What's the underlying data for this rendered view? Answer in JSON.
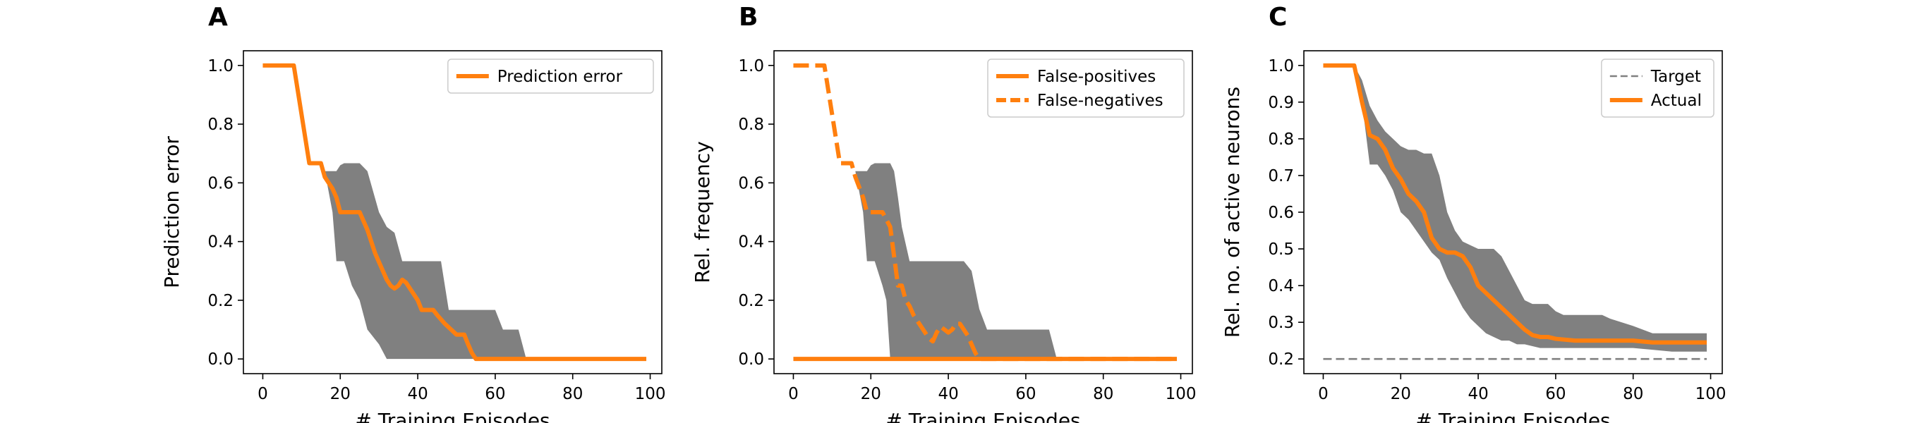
{
  "chart_data": [
    {
      "panel": "A",
      "type": "line",
      "xlabel": "# Training Episodes",
      "ylabel": "Prediction error",
      "xlim": [
        -5,
        103
      ],
      "ylim": [
        -0.05,
        1.05
      ],
      "xticks": [
        0,
        20,
        40,
        60,
        80,
        100
      ],
      "yticks": [
        0.0,
        0.2,
        0.4,
        0.6,
        0.8,
        1.0
      ],
      "yticks_decimals": 1,
      "grid": false,
      "legend": "top-right",
      "band": {
        "x": [
          0,
          8,
          11,
          14,
          15,
          16,
          18,
          19,
          20,
          21,
          23,
          25,
          27,
          30,
          32,
          34,
          36,
          38,
          40,
          42,
          44,
          46,
          48,
          50,
          52,
          54,
          56,
          58,
          60,
          62,
          64,
          66,
          68,
          70,
          72,
          80,
          90,
          99
        ],
        "upper": [
          1,
          1,
          0.667,
          0.667,
          0.667,
          0.64,
          0.64,
          0.64,
          0.66,
          0.667,
          0.667,
          0.667,
          0.64,
          0.5,
          0.45,
          0.43,
          0.333,
          0.333,
          0.333,
          0.333,
          0.333,
          0.333,
          0.167,
          0.167,
          0.167,
          0.167,
          0.167,
          0.167,
          0.167,
          0.1,
          0.1,
          0.1,
          0.0,
          0.0,
          0.0,
          0.0,
          0.0,
          0.0
        ],
        "lower": [
          1,
          1,
          0.667,
          0.667,
          0.667,
          0.64,
          0.5,
          0.333,
          0.333,
          0.333,
          0.25,
          0.2,
          0.1,
          0.05,
          0.0,
          0.0,
          0.0,
          0.0,
          0.0,
          0.0,
          0.0,
          0.0,
          0.0,
          0.0,
          0.0,
          0.0,
          0.0,
          0.0,
          0.0,
          0.0,
          0.0,
          0.0,
          0.0,
          0.0,
          0.0,
          0.0,
          0.0,
          0.0
        ],
        "color": "#808080"
      },
      "reference": null,
      "series": [
        {
          "name": "Prediction error",
          "style": "solid",
          "color": "#ff7f0e",
          "x": [
            0,
            8,
            12,
            15,
            16,
            18,
            19,
            20,
            24,
            25,
            26,
            27,
            28,
            29,
            30,
            31,
            32,
            33,
            34,
            35,
            36,
            37,
            38,
            39,
            40,
            41,
            42,
            44,
            45,
            47,
            50,
            52,
            53,
            54,
            55,
            60,
            70,
            80,
            90,
            99
          ],
          "y": [
            1,
            1,
            0.667,
            0.667,
            0.62,
            0.58,
            0.55,
            0.5,
            0.5,
            0.5,
            0.47,
            0.44,
            0.4,
            0.36,
            0.33,
            0.3,
            0.27,
            0.25,
            0.24,
            0.25,
            0.27,
            0.26,
            0.24,
            0.22,
            0.2,
            0.167,
            0.167,
            0.167,
            0.15,
            0.12,
            0.083,
            0.083,
            0.05,
            0.02,
            0.0,
            0.0,
            0.0,
            0.0,
            0.0,
            0.0
          ]
        }
      ]
    },
    {
      "panel": "B",
      "type": "line",
      "xlabel": "# Training Episodes",
      "ylabel": "Rel. frequency",
      "xlim": [
        -5,
        103
      ],
      "ylim": [
        -0.05,
        1.05
      ],
      "xticks": [
        0,
        20,
        40,
        60,
        80,
        100
      ],
      "yticks": [
        0.0,
        0.2,
        0.4,
        0.6,
        0.8,
        1.0
      ],
      "yticks_decimals": 1,
      "grid": false,
      "legend": "top-right",
      "band": {
        "x": [
          0,
          8,
          11,
          14,
          15,
          16,
          18,
          19,
          20,
          21,
          23,
          24,
          25,
          26,
          27,
          28,
          30,
          32,
          34,
          36,
          38,
          40,
          42,
          44,
          46,
          48,
          50,
          52,
          54,
          56,
          58,
          60,
          62,
          64,
          66,
          68,
          70,
          80,
          90,
          99
        ],
        "upper": [
          1,
          1,
          0.667,
          0.667,
          0.667,
          0.64,
          0.64,
          0.64,
          0.66,
          0.667,
          0.667,
          0.667,
          0.667,
          0.64,
          0.55,
          0.45,
          0.333,
          0.333,
          0.333,
          0.333,
          0.333,
          0.333,
          0.333,
          0.333,
          0.3,
          0.17,
          0.1,
          0.1,
          0.1,
          0.1,
          0.1,
          0.1,
          0.1,
          0.1,
          0.1,
          0.0,
          0.0,
          0.0,
          0.0,
          0.0
        ],
        "lower": [
          1,
          1,
          0.667,
          0.667,
          0.667,
          0.64,
          0.5,
          0.333,
          0.333,
          0.333,
          0.25,
          0.2,
          0.0,
          0.0,
          0.0,
          0.0,
          0.0,
          0.0,
          0.0,
          0.0,
          0.0,
          0.0,
          0.0,
          0.0,
          0.0,
          0.0,
          0.0,
          0.0,
          0.0,
          0.0,
          0.0,
          0.0,
          0.0,
          0.0,
          0.0,
          0.0,
          0.0,
          0.0,
          0.0,
          0.0
        ],
        "color": "#808080"
      },
      "reference": null,
      "series": [
        {
          "name": "False-positives",
          "style": "solid",
          "color": "#ff7f0e",
          "x": [
            0,
            20,
            40,
            60,
            80,
            99
          ],
          "y": [
            0,
            0,
            0,
            0,
            0,
            0
          ]
        },
        {
          "name": "False-negatives",
          "style": "dashed",
          "color": "#ff7f0e",
          "x": [
            0,
            8,
            12,
            15,
            16,
            18,
            19,
            20,
            23,
            25,
            26,
            27,
            28,
            29,
            30,
            31,
            32,
            33,
            34,
            35,
            36,
            37,
            38,
            39,
            40,
            41,
            42,
            43,
            44,
            45,
            46,
            47,
            48,
            55,
            60,
            70,
            80,
            90,
            99
          ],
          "y": [
            1,
            1,
            0.667,
            0.667,
            0.62,
            0.55,
            0.5,
            0.5,
            0.5,
            0.45,
            0.35,
            0.25,
            0.25,
            0.2,
            0.18,
            0.15,
            0.13,
            0.11,
            0.09,
            0.07,
            0.06,
            0.09,
            0.11,
            0.1,
            0.09,
            0.1,
            0.12,
            0.12,
            0.1,
            0.08,
            0.05,
            0.02,
            0.0,
            0.0,
            0.0,
            0.0,
            0.0,
            0.0,
            0.0
          ]
        }
      ]
    },
    {
      "panel": "C",
      "type": "line",
      "xlabel": "# Training Episodes",
      "ylabel": "Rel. no. of active neurons",
      "xlim": [
        -5,
        103
      ],
      "ylim": [
        0.16,
        1.04
      ],
      "xticks": [
        0,
        20,
        40,
        60,
        80,
        100
      ],
      "yticks": [
        0.2,
        0.3,
        0.4,
        0.5,
        0.6,
        0.7,
        0.8,
        0.9,
        1.0
      ],
      "yticks_decimals": 1,
      "grid": false,
      "legend": "top-right",
      "band": {
        "x": [
          0,
          8,
          10,
          12,
          14,
          16,
          18,
          20,
          22,
          24,
          26,
          28,
          30,
          32,
          34,
          36,
          38,
          40,
          42,
          44,
          46,
          48,
          50,
          52,
          54,
          56,
          58,
          60,
          62,
          64,
          66,
          68,
          70,
          72,
          74,
          80,
          85,
          90,
          99
        ],
        "upper": [
          1,
          1,
          0.96,
          0.89,
          0.85,
          0.82,
          0.8,
          0.78,
          0.77,
          0.77,
          0.76,
          0.76,
          0.7,
          0.6,
          0.55,
          0.52,
          0.51,
          0.5,
          0.5,
          0.5,
          0.48,
          0.44,
          0.4,
          0.36,
          0.35,
          0.35,
          0.35,
          0.33,
          0.32,
          0.32,
          0.32,
          0.32,
          0.32,
          0.32,
          0.31,
          0.29,
          0.27,
          0.27,
          0.27
        ],
        "lower": [
          1,
          1,
          0.9,
          0.73,
          0.73,
          0.7,
          0.66,
          0.6,
          0.58,
          0.55,
          0.52,
          0.49,
          0.47,
          0.42,
          0.38,
          0.34,
          0.31,
          0.29,
          0.27,
          0.26,
          0.25,
          0.25,
          0.24,
          0.24,
          0.235,
          0.23,
          0.23,
          0.23,
          0.23,
          0.23,
          0.23,
          0.23,
          0.23,
          0.23,
          0.23,
          0.23,
          0.225,
          0.22,
          0.22
        ],
        "color": "#808080"
      },
      "reference": {
        "name": "Target",
        "style": "dashed",
        "color": "#808080",
        "x": [
          0,
          99
        ],
        "y": [
          0.2,
          0.2
        ]
      },
      "series": [
        {
          "name": "Actual",
          "style": "solid",
          "color": "#ff7f0e",
          "x": [
            0,
            8,
            10,
            12,
            14,
            16,
            18,
            20,
            22,
            24,
            26,
            28,
            30,
            32,
            34,
            36,
            38,
            40,
            42,
            44,
            46,
            48,
            50,
            52,
            54,
            56,
            58,
            60,
            65,
            70,
            75,
            80,
            85,
            90,
            95,
            99
          ],
          "y": [
            1,
            1,
            0.9,
            0.81,
            0.8,
            0.77,
            0.72,
            0.69,
            0.65,
            0.63,
            0.6,
            0.53,
            0.5,
            0.49,
            0.49,
            0.48,
            0.45,
            0.4,
            0.38,
            0.36,
            0.34,
            0.32,
            0.3,
            0.28,
            0.265,
            0.26,
            0.26,
            0.255,
            0.25,
            0.25,
            0.25,
            0.25,
            0.245,
            0.245,
            0.245,
            0.245
          ]
        }
      ]
    }
  ]
}
